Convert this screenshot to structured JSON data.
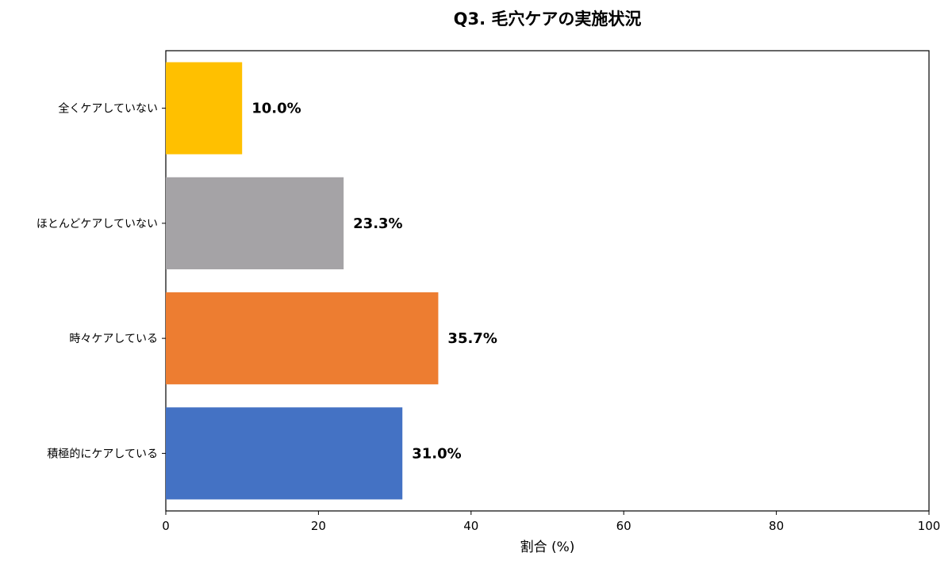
{
  "chart_data": {
    "type": "bar",
    "orientation": "horizontal",
    "title": "Q3. 毛穴ケアの実施状況",
    "xlabel": "割合 (%)",
    "ylabel": "",
    "xlim": [
      0,
      100
    ],
    "xticks": [
      0,
      20,
      40,
      60,
      80,
      100
    ],
    "categories": [
      "全くケアしていない",
      "ほとんどケアしていない",
      "時々ケアしている",
      "積極的にケアしている"
    ],
    "values": [
      10.0,
      23.3,
      35.7,
      31.0
    ],
    "data_labels": [
      "10.0%",
      "23.3%",
      "35.7%",
      "31.0%"
    ],
    "colors": [
      "#FFC000",
      "#A5A3A6",
      "#ED7D31",
      "#4472C4"
    ],
    "grid": false,
    "legend": "none"
  }
}
